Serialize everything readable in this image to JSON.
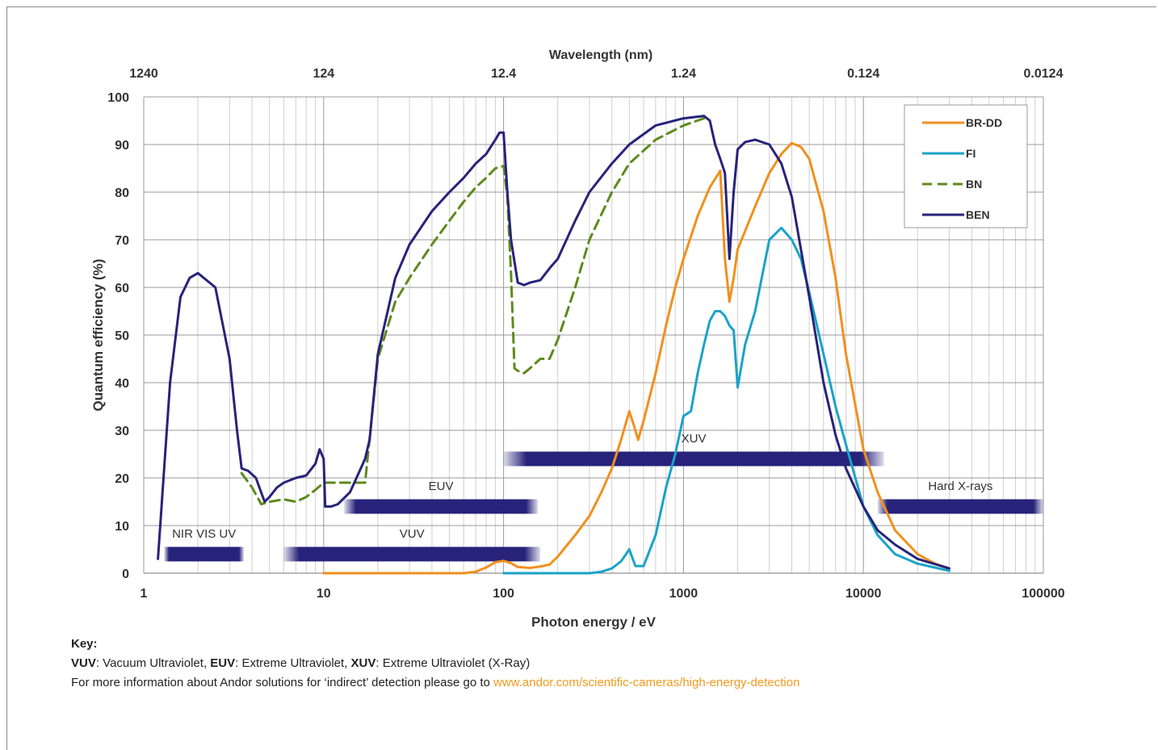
{
  "chart_data": {
    "type": "line",
    "x_scale": "log",
    "y_scale": "linear",
    "xlabel": "Photon energy / eV",
    "ylabel": "Quantum efficiency (%)",
    "top_axis_label": "Wavelength (nm)",
    "xlim": [
      1,
      100000
    ],
    "ylim": [
      0,
      100
    ],
    "grid": true,
    "legend_position": "top-right",
    "x_ticks": [
      {
        "value": 1,
        "label": "1"
      },
      {
        "value": 10,
        "label": "10"
      },
      {
        "value": 100,
        "label": "100"
      },
      {
        "value": 1000,
        "label": "1000"
      },
      {
        "value": 10000,
        "label": "10000"
      },
      {
        "value": 100000,
        "label": "100000"
      }
    ],
    "top_ticks": [
      {
        "value": 1,
        "label": "1240"
      },
      {
        "value": 10,
        "label": "124"
      },
      {
        "value": 100,
        "label": "12.4"
      },
      {
        "value": 1000,
        "label": "1.24"
      },
      {
        "value": 10000,
        "label": "0.124"
      },
      {
        "value": 100000,
        "label": "0.0124"
      }
    ],
    "y_ticks": [
      0,
      10,
      20,
      30,
      40,
      50,
      60,
      70,
      80,
      90,
      100
    ],
    "series": [
      {
        "name": "BR-DD",
        "color": "#f0901e",
        "dash": "solid",
        "points": [
          [
            10,
            0
          ],
          [
            20,
            0
          ],
          [
            40,
            0
          ],
          [
            60,
            0
          ],
          [
            70,
            0.3
          ],
          [
            80,
            1.2
          ],
          [
            90,
            2.3
          ],
          [
            100,
            2.6
          ],
          [
            110,
            2.1
          ],
          [
            120,
            1.3
          ],
          [
            140,
            1.1
          ],
          [
            160,
            1.4
          ],
          [
            180,
            1.8
          ],
          [
            200,
            3.5
          ],
          [
            250,
            8
          ],
          [
            300,
            12
          ],
          [
            350,
            17
          ],
          [
            400,
            22
          ],
          [
            450,
            28
          ],
          [
            500,
            34
          ],
          [
            530,
            31
          ],
          [
            560,
            28
          ],
          [
            600,
            32
          ],
          [
            700,
            42
          ],
          [
            800,
            52
          ],
          [
            900,
            60
          ],
          [
            1000,
            66
          ],
          [
            1200,
            75
          ],
          [
            1400,
            81
          ],
          [
            1600,
            84.5
          ],
          [
            1700,
            66
          ],
          [
            1800,
            57
          ],
          [
            1900,
            62
          ],
          [
            2000,
            68
          ],
          [
            2500,
            77
          ],
          [
            3000,
            84
          ],
          [
            3500,
            88
          ],
          [
            4000,
            90.3
          ],
          [
            4500,
            89.5
          ],
          [
            5000,
            87
          ],
          [
            6000,
            76
          ],
          [
            7000,
            62
          ],
          [
            8000,
            46
          ],
          [
            10000,
            26
          ],
          [
            12000,
            17
          ],
          [
            15000,
            9
          ],
          [
            20000,
            4
          ],
          [
            25000,
            2
          ],
          [
            30000,
            1
          ]
        ]
      },
      {
        "name": "FI",
        "color": "#1aa3c8",
        "dash": "solid",
        "points": [
          [
            100,
            0
          ],
          [
            200,
            0
          ],
          [
            300,
            0
          ],
          [
            350,
            0.3
          ],
          [
            400,
            1
          ],
          [
            450,
            2.5
          ],
          [
            500,
            5
          ],
          [
            540,
            1.5
          ],
          [
            600,
            1.5
          ],
          [
            700,
            8
          ],
          [
            800,
            18
          ],
          [
            900,
            25
          ],
          [
            1000,
            33
          ],
          [
            1100,
            34
          ],
          [
            1200,
            42
          ],
          [
            1300,
            48
          ],
          [
            1400,
            53
          ],
          [
            1500,
            55
          ],
          [
            1600,
            55
          ],
          [
            1700,
            54
          ],
          [
            1800,
            52
          ],
          [
            1900,
            51
          ],
          [
            2000,
            39
          ],
          [
            2200,
            48
          ],
          [
            2500,
            55
          ],
          [
            3000,
            70
          ],
          [
            3500,
            72.5
          ],
          [
            4000,
            70
          ],
          [
            4500,
            66
          ],
          [
            5000,
            59
          ],
          [
            6000,
            46
          ],
          [
            7000,
            35
          ],
          [
            8000,
            27
          ],
          [
            10000,
            14
          ],
          [
            12000,
            8
          ],
          [
            15000,
            4
          ],
          [
            20000,
            2
          ],
          [
            30000,
            0.5
          ]
        ]
      },
      {
        "name": "BN",
        "color": "#5e8a1e",
        "dash": "dashed",
        "points": [
          [
            3.5,
            21
          ],
          [
            4,
            18
          ],
          [
            4.5,
            14.5
          ],
          [
            5,
            15
          ],
          [
            6,
            15.5
          ],
          [
            7,
            15
          ],
          [
            8,
            16
          ],
          [
            9,
            17.5
          ],
          [
            10,
            19
          ],
          [
            17,
            19
          ],
          [
            20,
            45
          ],
          [
            25,
            57
          ],
          [
            30,
            62
          ],
          [
            40,
            69
          ],
          [
            50,
            74
          ],
          [
            60,
            78
          ],
          [
            70,
            81
          ],
          [
            80,
            83
          ],
          [
            90,
            85
          ],
          [
            100,
            85.5
          ],
          [
            105,
            79
          ],
          [
            110,
            63
          ],
          [
            115,
            43
          ],
          [
            120,
            42.5
          ],
          [
            130,
            42
          ],
          [
            140,
            43
          ],
          [
            160,
            45
          ],
          [
            180,
            45
          ],
          [
            200,
            49
          ],
          [
            250,
            60
          ],
          [
            300,
            70
          ],
          [
            400,
            80
          ],
          [
            500,
            86
          ],
          [
            700,
            91
          ],
          [
            1000,
            94
          ],
          [
            1300,
            95.5
          ]
        ]
      },
      {
        "name": "BEN",
        "color": "#27237a",
        "dash": "solid",
        "points": [
          [
            1.2,
            3
          ],
          [
            1.4,
            40
          ],
          [
            1.6,
            58
          ],
          [
            1.8,
            62
          ],
          [
            2,
            63
          ],
          [
            2.5,
            60
          ],
          [
            3,
            45
          ],
          [
            3.3,
            30
          ],
          [
            3.5,
            22
          ],
          [
            3.8,
            21.5
          ],
          [
            4.2,
            20
          ],
          [
            4.7,
            15
          ],
          [
            5,
            16
          ],
          [
            5.5,
            18
          ],
          [
            6,
            19
          ],
          [
            7,
            20
          ],
          [
            8,
            20.5
          ],
          [
            9,
            23
          ],
          [
            9.5,
            26
          ],
          [
            10,
            24
          ],
          [
            10.2,
            14
          ],
          [
            11,
            14
          ],
          [
            12,
            14.5
          ],
          [
            14,
            17
          ],
          [
            17,
            24
          ],
          [
            18,
            28
          ],
          [
            20,
            46
          ],
          [
            25,
            62
          ],
          [
            30,
            69
          ],
          [
            40,
            76
          ],
          [
            50,
            80
          ],
          [
            60,
            83
          ],
          [
            70,
            86
          ],
          [
            80,
            88
          ],
          [
            90,
            91
          ],
          [
            95,
            92.5
          ],
          [
            100,
            92.5
          ],
          [
            105,
            80
          ],
          [
            110,
            70
          ],
          [
            120,
            61
          ],
          [
            130,
            60.5
          ],
          [
            140,
            61
          ],
          [
            160,
            61.5
          ],
          [
            180,
            64
          ],
          [
            200,
            66
          ],
          [
            250,
            74
          ],
          [
            300,
            80
          ],
          [
            400,
            86
          ],
          [
            500,
            90
          ],
          [
            700,
            94
          ],
          [
            1000,
            95.5
          ],
          [
            1300,
            96
          ],
          [
            1400,
            95
          ],
          [
            1500,
            90
          ],
          [
            1600,
            87
          ],
          [
            1700,
            84
          ],
          [
            1800,
            66
          ],
          [
            1900,
            80
          ],
          [
            2000,
            89
          ],
          [
            2200,
            90.5
          ],
          [
            2500,
            91
          ],
          [
            3000,
            90
          ],
          [
            3500,
            86
          ],
          [
            4000,
            79
          ],
          [
            5000,
            58
          ],
          [
            6000,
            40
          ],
          [
            7000,
            29
          ],
          [
            8000,
            22
          ],
          [
            10000,
            14
          ],
          [
            12000,
            9
          ],
          [
            15000,
            6
          ],
          [
            20000,
            3
          ],
          [
            30000,
            1
          ]
        ]
      }
    ],
    "region_bands": [
      {
        "label": "NIR  VIS UV",
        "x_start": 1.3,
        "x_end": 3.6,
        "y": 4,
        "label_y": 7.5
      },
      {
        "label": "VUV",
        "x_start": 6,
        "x_end": 160,
        "y": 4,
        "label_y": 7.5
      },
      {
        "label": "EUV",
        "x_start": 13,
        "x_end": 155,
        "y": 14,
        "label_y": 17.5
      },
      {
        "label": "XUV",
        "x_start": 100,
        "x_end": 13000,
        "y": 24,
        "label_y": 27.5
      },
      {
        "label": "Hard X-rays",
        "x_start": 12000,
        "x_end": 100000,
        "y": 14,
        "label_y": 17.5
      }
    ]
  },
  "key": {
    "title": "Key:",
    "vuv_abbr": "VUV",
    "vuv_text": ": Vacuum Ultraviolet, ",
    "euv_abbr": "EUV",
    "euv_text": ": Extreme Ultraviolet, ",
    "xuv_abbr": "XUV",
    "xuv_text": ": Extreme Ultraviolet (X-Ray)",
    "info_text": "For more information about Andor solutions for ‘indirect’ detection please go to ",
    "link_text": "www.andor.com/scientific-cameras/high-energy-detection"
  }
}
